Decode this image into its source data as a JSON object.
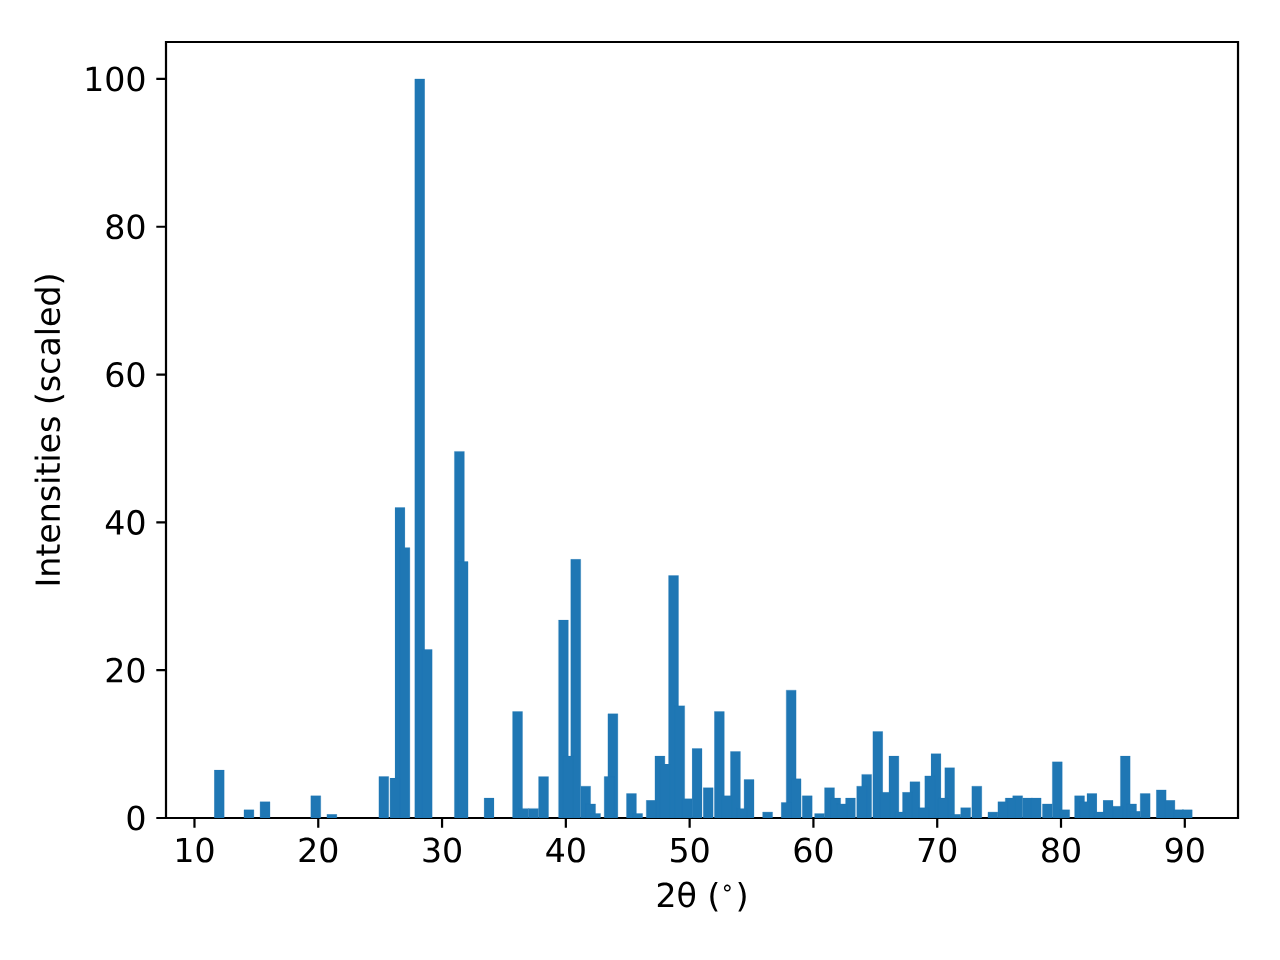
{
  "chart_data": {
    "type": "bar",
    "xlabel": "2θ ($^{∘}$)",
    "ylabel": "Intensities (scaled)",
    "color": "#1f77b4",
    "x": [
      12.0,
      14.4,
      15.7,
      19.8,
      21.1,
      25.3,
      26.2,
      26.6,
      27.0,
      28.2,
      28.8,
      31.4,
      31.7,
      33.8,
      36.1,
      36.6,
      37.4,
      38.2,
      39.8,
      40.2,
      40.8,
      41.6,
      42.0,
      42.4,
      43.5,
      43.8,
      45.3,
      45.8,
      46.9,
      47.6,
      48.0,
      48.7,
      49.2,
      49.8,
      50.6,
      51.5,
      52.4,
      53.0,
      53.7,
      54.2,
      54.8,
      56.3,
      57.8,
      58.2,
      58.6,
      59.5,
      60.5,
      61.3,
      61.8,
      62.3,
      63.0,
      63.9,
      64.3,
      65.2,
      65.8,
      66.5,
      67.0,
      67.6,
      68.2,
      68.9,
      69.4,
      69.9,
      70.5,
      71.0,
      71.5,
      72.3,
      73.2,
      74.5,
      75.3,
      75.9,
      76.5,
      77.3,
      78.0,
      78.9,
      79.7,
      80.3,
      81.5,
      81.9,
      82.5,
      83.1,
      83.8,
      84.6,
      85.2,
      85.7,
      86.0,
      86.8,
      88.1,
      88.8,
      89.5,
      90.2
    ],
    "values": [
      6.5,
      1.1,
      2.2,
      3.0,
      0.5,
      5.6,
      5.4,
      42.0,
      36.6,
      100,
      22.8,
      49.6,
      34.7,
      2.7,
      14.4,
      1.3,
      1.3,
      5.6,
      26.8,
      8.4,
      35.0,
      4.3,
      1.9,
      0.6,
      5.6,
      14.1,
      3.3,
      0.6,
      2.4,
      8.4,
      7.3,
      32.8,
      15.2,
      2.6,
      9.4,
      4.1,
      14.4,
      3.0,
      9.0,
      1.3,
      5.2,
      0.8,
      2.1,
      17.3,
      5.3,
      3.0,
      0.6,
      4.1,
      2.7,
      1.9,
      2.7,
      4.3,
      5.9,
      11.7,
      3.5,
      8.4,
      0.8,
      3.5,
      4.9,
      1.4,
      5.7,
      8.7,
      2.7,
      6.8,
      0.5,
      1.4,
      4.3,
      0.8,
      2.2,
      2.7,
      3.0,
      2.7,
      2.7,
      1.9,
      7.6,
      1.1,
      3.0,
      2.2,
      3.3,
      0.8,
      2.4,
      1.6,
      8.4,
      1.9,
      0.9,
      3.3,
      3.8,
      2.4,
      1.1,
      1.1
    ],
    "xlim": [
      7.7,
      94.3
    ],
    "ylim": [
      0,
      105
    ],
    "xticks": [
      10,
      20,
      30,
      40,
      50,
      60,
      70,
      80,
      90
    ],
    "yticks": [
      0,
      20,
      40,
      60,
      80,
      100
    ]
  }
}
